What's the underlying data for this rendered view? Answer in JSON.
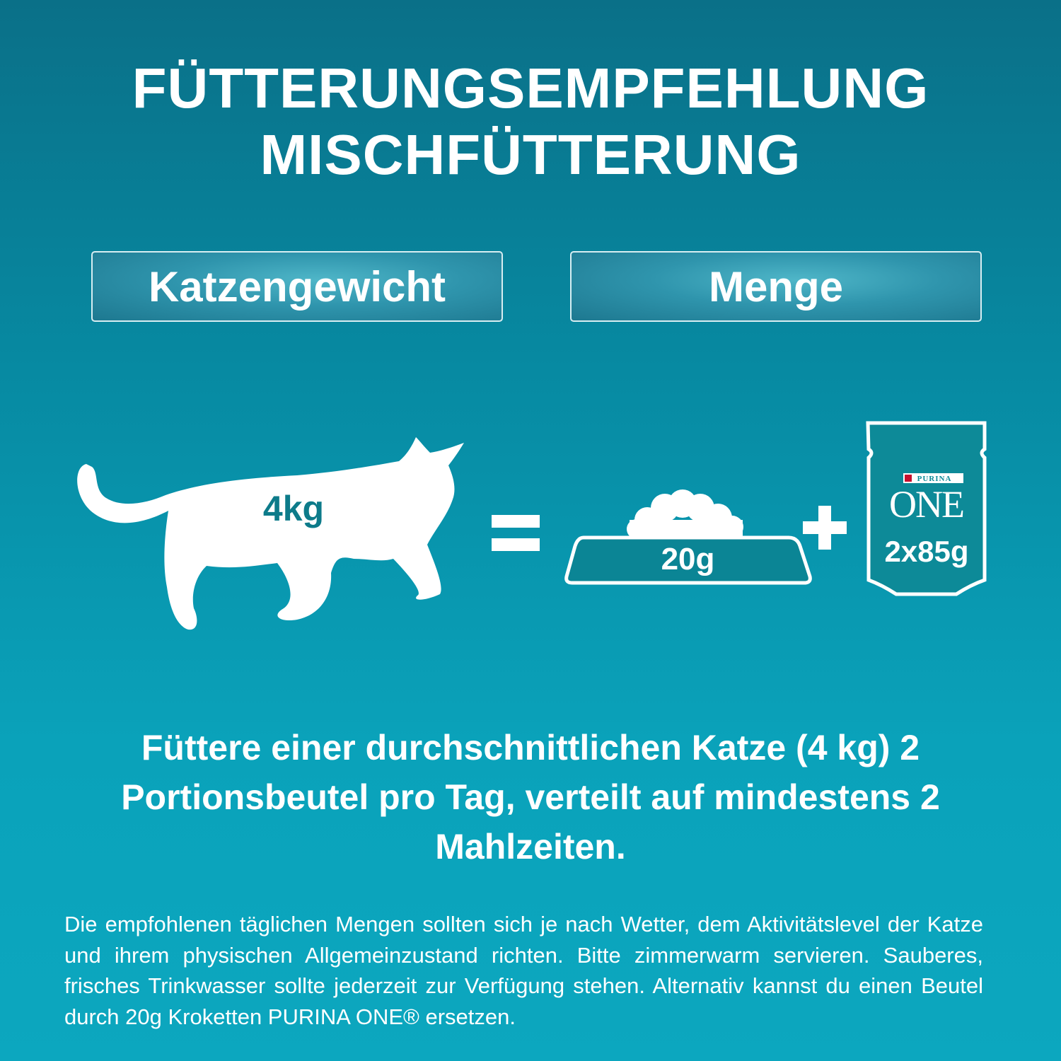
{
  "title": {
    "line1": "FÜTTERUNGSEMPFEHLUNG",
    "line2": "MISCHFÜTTERUNG"
  },
  "headers": {
    "left": "Katzengewicht",
    "right": "Menge"
  },
  "diagram": {
    "cat_weight": "4kg",
    "dry_amount": "20g",
    "pouch_amount": "2x85g",
    "pouch_brand": "PURINA",
    "pouch_product": "ONE",
    "icons": [
      "cat-silhouette",
      "equals",
      "food-bowl",
      "plus",
      "pouch"
    ]
  },
  "main_text": "Füttere einer durchschnittlichen Katze (4 kg) 2 Portionsbeutel pro Tag, verteilt auf mindestens 2 Mahlzeiten.",
  "footnote": "Die empfohlenen täglichen Mengen sollten sich je nach Wetter, dem Aktivitätslevel der Katze und ihrem physischen Allgemeinzustand richten. Bitte zimmerwarm servieren. Sauberes, frisches Trinkwasser sollte jederzeit zur Verfügung stehen. Alternativ kannst du einen Beutel durch 20g Kroketten PURINA ONE® ersetzen.",
  "colors": {
    "background_top": "#0a7088",
    "background_bottom": "#0ca7bf",
    "bowl_fill": "#0b8595",
    "pouch_fill": "#0d8a98"
  }
}
